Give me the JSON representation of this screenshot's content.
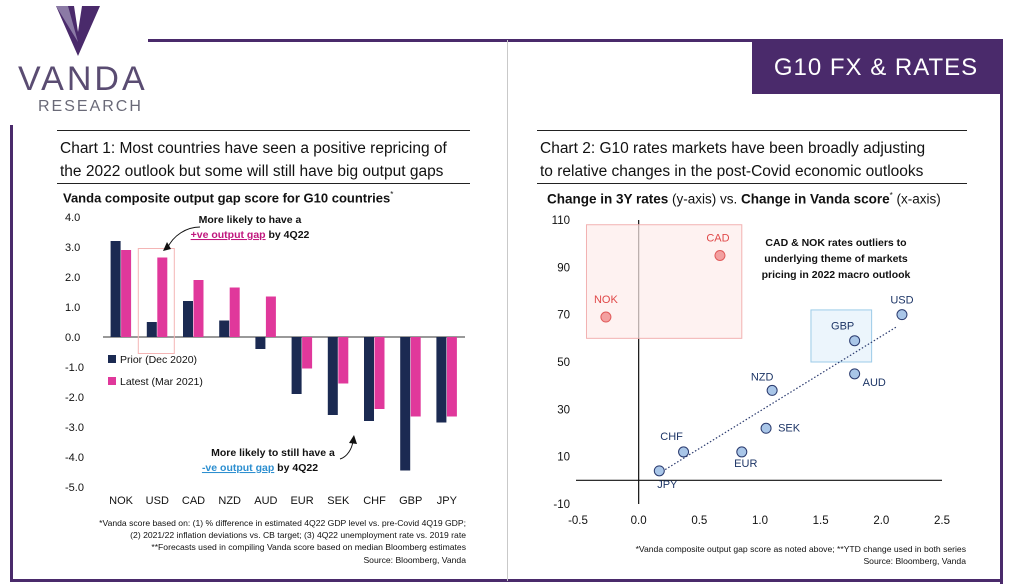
{
  "brand": {
    "name": "VANDA",
    "sub": "RESEARCH",
    "section": "G10 FX & RATES",
    "purple": "#4a2a6b"
  },
  "chart1": {
    "title_line1": "Chart 1: Most countries have seen a positive repricing of",
    "title_line2": "the 2022 outlook but some will still have big output gaps",
    "subtitle": "Vanda composite output gap score for G10 countries",
    "subtitle_mark": "*",
    "annotation_top_line1": "More likely to have a",
    "annotation_top_link": "+ve output gap",
    "annotation_top_suffix": " by 4Q22",
    "annotation_bottom_line1": "More likely to still have a",
    "annotation_bottom_link": "-ve output gap",
    "annotation_bottom_suffix": " by 4Q22",
    "footnote_line1": "*Vanda score based on: (1) % difference in estimated 4Q22 GDP level vs. pre-Covid 4Q19 GDP;",
    "footnote_line2": "(2) 2021/22 inflation deviations vs. CB target; (3) 4Q22 unemployment rate vs. 2019 rate",
    "footnote_line3": "**Forecasts used in compiling Vanda score based on median Bloomberg estimates",
    "source": "Source: Bloomberg, Vanda"
  },
  "chart2": {
    "title_line1": "Chart 2: G10 rates markets have been broadly adjusting",
    "title_line2": "to relative changes in the post-Covid economic outlooks",
    "subtitle_a": "Change in 3Y rates",
    "subtitle_b": " (y-axis) vs. ",
    "subtitle_c": "Change in Vanda score",
    "subtitle_mark": "*",
    "subtitle_d": " (x-axis)",
    "annotation_line1": "CAD & NOK rates outliers to",
    "annotation_line2": "underlying theme of markets",
    "annotation_line3": "pricing in 2022 macro outlook",
    "footnote": "*Vanda composite output gap score as noted above; **YTD change used in both series",
    "source": "Source: Bloomberg, Vanda"
  },
  "chart_data": [
    {
      "type": "bar",
      "categories": [
        "NOK",
        "USD",
        "CAD",
        "NZD",
        "AUD",
        "EUR",
        "SEK",
        "CHF",
        "GBP",
        "JPY"
      ],
      "series": [
        {
          "name": "Prior (Dec 2020)",
          "color": "#1b2a52",
          "values": [
            3.2,
            0.5,
            1.2,
            0.55,
            -0.4,
            -1.9,
            -2.6,
            -2.8,
            -4.45,
            -2.85
          ]
        },
        {
          "name": "Latest (Mar 2021)",
          "color": "#e0389b",
          "values": [
            2.9,
            2.65,
            1.9,
            1.65,
            1.35,
            -1.05,
            -1.55,
            -2.4,
            -2.65,
            -2.65
          ]
        }
      ],
      "ylim": [
        -5.0,
        4.0
      ],
      "yticks": [
        "4.0",
        "3.0",
        "2.0",
        "1.0",
        "0.0",
        "-1.0",
        "-2.0",
        "-3.0",
        "-4.0",
        "-5.0"
      ],
      "legend_position": "center-left"
    },
    {
      "type": "scatter",
      "points": [
        {
          "label": "USD",
          "x": 2.17,
          "y": 70
        },
        {
          "label": "GBP",
          "x": 1.78,
          "y": 59
        },
        {
          "label": "AUD",
          "x": 1.78,
          "y": 45
        },
        {
          "label": "NZD",
          "x": 1.1,
          "y": 38
        },
        {
          "label": "SEK",
          "x": 1.05,
          "y": 22
        },
        {
          "label": "EUR",
          "x": 0.85,
          "y": 12
        },
        {
          "label": "CHF",
          "x": 0.37,
          "y": 12
        },
        {
          "label": "JPY",
          "x": 0.17,
          "y": 4
        },
        {
          "label": "CAD",
          "x": 0.67,
          "y": 95,
          "outlier": true
        },
        {
          "label": "NOK",
          "x": -0.27,
          "y": 69,
          "outlier": true
        }
      ],
      "xlim": [
        -0.5,
        2.5
      ],
      "ylim": [
        -10,
        110
      ],
      "xticks": [
        "-0.5",
        "0.0",
        "0.5",
        "1.0",
        "1.5",
        "2.0",
        "2.5"
      ],
      "yticks": [
        "110",
        "90",
        "70",
        "50",
        "30",
        "10",
        "-10"
      ],
      "trendline": true,
      "point_color": "#a9c6e8",
      "outlier_color": "#f3a0a0"
    }
  ]
}
